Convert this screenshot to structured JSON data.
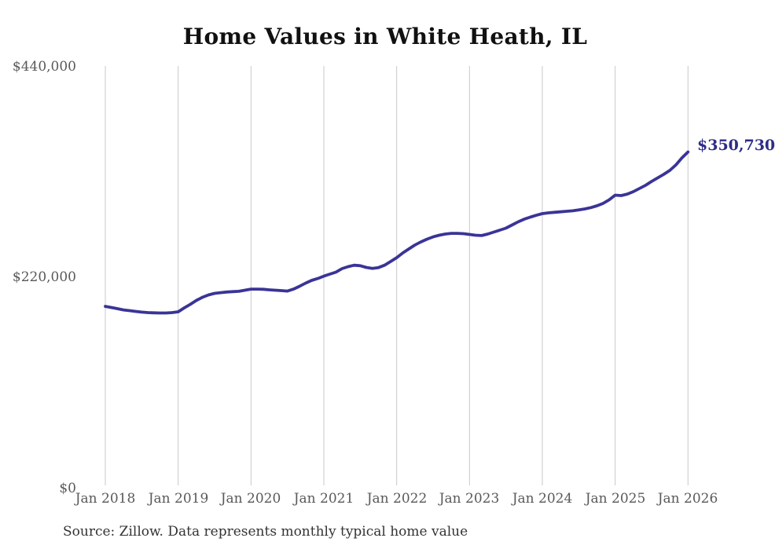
{
  "title": "Home Values in White Heath, IL",
  "source_note": "Source: Zillow. Data represents monthly typical home value",
  "end_label": "$350,730",
  "colors": {
    "line": "#3a3497",
    "end_label": "#2e2d87",
    "gridline": "#c9c9c9",
    "axis_text": "#595959",
    "title_text": "#111111",
    "source_text": "#333333",
    "background": "#ffffff"
  },
  "chart_data": {
    "type": "line",
    "title": "Home Values in White Heath, IL",
    "xlabel": "",
    "ylabel": "",
    "unit": "USD",
    "frequency": "monthly",
    "start_month": "Jan 2018",
    "end_month": "Jan 2026",
    "final_value": 350730,
    "ylim": [
      0,
      440000
    ],
    "grid": "vertical-only",
    "legend": "none",
    "y_tick_labels": [
      "$440,000",
      "$220,000",
      "$0"
    ],
    "y_tick_values": [
      440000,
      220000,
      0
    ],
    "x_tick_labels": [
      "Jan 2018",
      "Jan 2019",
      "Jan 2020",
      "Jan 2021",
      "Jan 2022",
      "Jan 2023",
      "Jan 2024",
      "Jan 2025",
      "Jan 2026"
    ],
    "values": [
      189100,
      187900,
      186700,
      185400,
      184600,
      183800,
      183100,
      182600,
      182300,
      182200,
      182200,
      182600,
      183400,
      187500,
      191200,
      195300,
      198600,
      201100,
      202700,
      203500,
      204100,
      204500,
      204900,
      206000,
      207200,
      207200,
      207000,
      206400,
      206000,
      205600,
      205100,
      207200,
      210100,
      213400,
      216300,
      218300,
      220700,
      222900,
      224900,
      228600,
      230700,
      232200,
      231700,
      229900,
      228900,
      229700,
      232200,
      236000,
      240100,
      245000,
      249200,
      253300,
      256600,
      259500,
      261900,
      263600,
      264800,
      265600,
      265600,
      265200,
      264400,
      263600,
      263300,
      264800,
      266900,
      268900,
      271000,
      274300,
      277600,
      280400,
      282500,
      284500,
      286200,
      287000,
      287600,
      288100,
      288700,
      289200,
      290100,
      291100,
      292500,
      294400,
      296900,
      300600,
      305500,
      305100,
      306700,
      309200,
      312500,
      315800,
      319900,
      323600,
      327300,
      331400,
      337200,
      344600,
      350730
    ]
  }
}
